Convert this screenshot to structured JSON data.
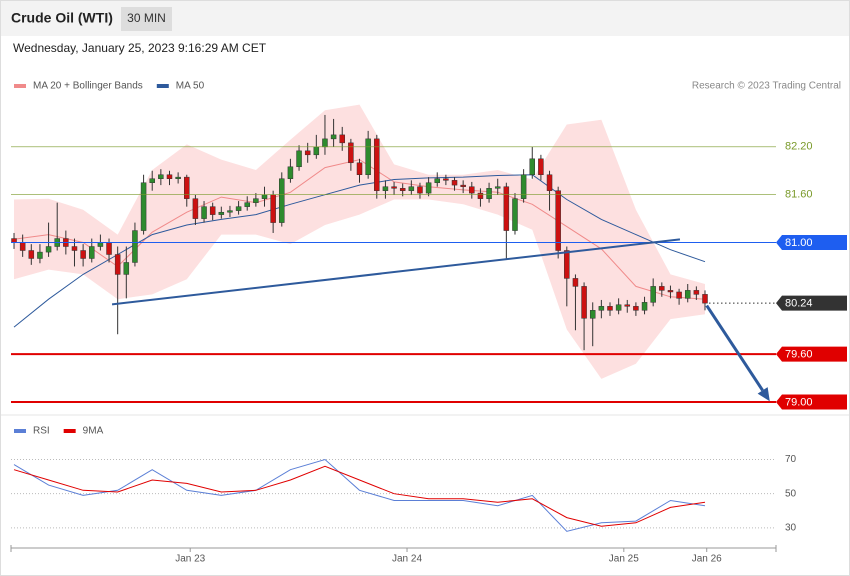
{
  "header": {
    "title": "Crude Oil (WTI)",
    "interval": "30 MIN",
    "timestamp": "Wednesday, January 25, 2023 9:16:29 AM CET",
    "credit": "Research © 2023 Trading Central"
  },
  "chart_data": [
    {
      "type": "candlestick",
      "xlim": [
        -0.35,
        88.22
      ],
      "ylim": [
        78.9,
        82.85
      ],
      "up_color": "#2e8b2e",
      "down_color": "#cc1111",
      "legend": "top-left",
      "candles": {
        "open": [
          81.05,
          81.0,
          80.9,
          80.8,
          80.88,
          80.95,
          81.05,
          80.95,
          80.9,
          80.8,
          80.95,
          81.0,
          80.85,
          80.6,
          80.75,
          81.15,
          81.75,
          81.8,
          81.85,
          81.8,
          81.82,
          81.55,
          81.3,
          81.45,
          81.35,
          81.38,
          81.4,
          81.45,
          81.5,
          81.55,
          81.6,
          81.25,
          81.8,
          81.95,
          82.15,
          82.1,
          82.2,
          82.3,
          82.35,
          82.25,
          82.0,
          81.85,
          82.3,
          81.65,
          81.7,
          81.68,
          81.65,
          81.7,
          81.62,
          81.75,
          81.8,
          81.78,
          81.72,
          81.7,
          81.62,
          81.55,
          81.68,
          81.7,
          81.15,
          81.55,
          81.85,
          82.05,
          81.85,
          81.65,
          80.9,
          80.55,
          80.45,
          80.05,
          80.15,
          80.2,
          80.15,
          80.22,
          80.2,
          80.15,
          80.25,
          80.45,
          80.4,
          80.38,
          80.3,
          80.4,
          80.35
        ],
        "high": [
          81.12,
          81.1,
          80.98,
          80.98,
          81.25,
          81.5,
          81.15,
          81.05,
          80.98,
          81.05,
          81.1,
          81.05,
          80.95,
          80.95,
          81.25,
          81.85,
          81.9,
          81.92,
          81.9,
          81.88,
          81.85,
          81.6,
          81.52,
          81.5,
          81.45,
          81.46,
          81.52,
          81.58,
          81.62,
          81.7,
          81.65,
          81.88,
          82.05,
          82.22,
          82.25,
          82.35,
          82.6,
          82.55,
          82.45,
          82.3,
          82.05,
          82.4,
          82.35,
          81.78,
          81.76,
          81.74,
          81.78,
          81.75,
          81.82,
          81.88,
          81.85,
          81.82,
          81.78,
          81.76,
          81.68,
          81.75,
          81.8,
          81.75,
          81.62,
          81.92,
          82.2,
          82.1,
          81.9,
          81.7,
          80.95,
          80.6,
          80.5,
          80.25,
          80.28,
          80.25,
          80.3,
          80.28,
          80.25,
          80.32,
          80.55,
          80.5,
          80.46,
          80.42,
          80.48,
          80.45,
          80.4
        ],
        "low": [
          80.92,
          80.82,
          80.72,
          80.74,
          80.82,
          80.9,
          80.85,
          80.7,
          80.7,
          80.75,
          80.9,
          80.75,
          79.85,
          80.3,
          80.7,
          81.1,
          81.65,
          81.72,
          81.72,
          81.74,
          81.45,
          81.22,
          81.25,
          81.28,
          81.3,
          81.32,
          81.35,
          81.4,
          81.45,
          81.45,
          81.12,
          81.2,
          81.75,
          81.9,
          82.0,
          82.05,
          82.1,
          82.2,
          82.15,
          81.9,
          81.75,
          81.8,
          81.55,
          81.55,
          81.6,
          81.58,
          81.6,
          81.55,
          81.58,
          81.7,
          81.72,
          81.65,
          81.62,
          81.55,
          81.45,
          81.5,
          81.6,
          80.8,
          81.1,
          81.5,
          81.8,
          81.78,
          81.4,
          80.8,
          80.2,
          79.9,
          79.65,
          79.7,
          80.05,
          80.08,
          80.1,
          80.12,
          80.08,
          80.1,
          80.2,
          80.32,
          80.3,
          80.22,
          80.25,
          80.28,
          80.15
        ],
        "close": [
          81.0,
          80.9,
          80.8,
          80.88,
          80.95,
          81.05,
          80.95,
          80.9,
          80.8,
          80.95,
          81.0,
          80.85,
          80.6,
          80.75,
          81.15,
          81.75,
          81.8,
          81.85,
          81.8,
          81.82,
          81.55,
          81.3,
          81.45,
          81.35,
          81.38,
          81.4,
          81.45,
          81.5,
          81.55,
          81.6,
          81.25,
          81.8,
          81.95,
          82.15,
          82.1,
          82.2,
          82.3,
          82.35,
          82.25,
          82.0,
          81.85,
          82.3,
          81.65,
          81.7,
          81.68,
          81.65,
          81.7,
          81.62,
          81.75,
          81.8,
          81.78,
          81.72,
          81.7,
          81.62,
          81.55,
          81.68,
          81.7,
          81.15,
          81.55,
          81.85,
          82.05,
          81.85,
          81.65,
          80.9,
          80.55,
          80.45,
          80.05,
          80.15,
          80.2,
          80.15,
          80.22,
          80.2,
          80.15,
          80.25,
          80.45,
          80.4,
          80.38,
          80.3,
          80.4,
          80.35,
          80.24
        ]
      },
      "band": {
        "fill": "#fde0e0",
        "x": [
          0,
          4,
          8,
          12,
          16,
          20,
          24,
          28,
          32,
          36,
          40,
          44,
          48,
          52,
          56,
          60,
          64,
          68,
          72,
          76,
          80
        ],
        "upper": [
          81.54,
          81.55,
          81.41,
          81.1,
          81.91,
          82.23,
          82.04,
          81.91,
          82.29,
          82.66,
          82.73,
          81.98,
          81.85,
          81.85,
          81.91,
          81.79,
          82.48,
          82.54,
          81.41,
          80.6,
          80.48
        ],
        "lower": [
          80.54,
          80.66,
          80.6,
          80.29,
          80.35,
          80.54,
          81.1,
          81.1,
          80.98,
          81.22,
          81.35,
          81.54,
          81.54,
          81.48,
          81.35,
          81.16,
          79.91,
          79.29,
          79.48,
          80.04,
          80.1
        ]
      },
      "series": [
        {
          "name": "MA 20 + Bollinger Bands",
          "color": "#f08a8a",
          "x": [
            0,
            4,
            8,
            12,
            16,
            20,
            24,
            28,
            32,
            36,
            40,
            44,
            48,
            52,
            56,
            60,
            64,
            68,
            72,
            76,
            80
          ],
          "values": [
            81.04,
            81.1,
            81.0,
            80.7,
            81.13,
            81.38,
            81.57,
            81.5,
            81.63,
            81.94,
            82.04,
            81.76,
            81.7,
            81.66,
            81.63,
            81.48,
            81.2,
            80.92,
            80.45,
            80.32,
            80.29
          ]
        },
        {
          "name": "MA 50",
          "color": "#2e5a9c",
          "x": [
            0,
            4,
            8,
            12,
            16,
            20,
            24,
            28,
            32,
            36,
            40,
            44,
            48,
            52,
            56,
            60,
            64,
            68,
            72,
            76,
            80
          ],
          "values": [
            79.94,
            80.29,
            80.6,
            80.85,
            81.1,
            81.22,
            81.29,
            81.35,
            81.48,
            81.6,
            81.72,
            81.79,
            81.81,
            81.82,
            81.84,
            81.85,
            81.54,
            81.29,
            81.1,
            80.91,
            80.76
          ]
        }
      ],
      "levels": [
        {
          "value": 82.2,
          "label": "82.20",
          "color": "#7a9a2a",
          "line": "solid",
          "width": 0.7,
          "box": false
        },
        {
          "value": 81.6,
          "label": "81.60",
          "color": "#7a9a2a",
          "line": "solid",
          "width": 0.7,
          "box": false
        },
        {
          "value": 81,
          "label": "81.00",
          "color": "#1e5ef0",
          "line": "solid",
          "width": 1,
          "box": true
        },
        {
          "value": 80.24,
          "label": "80.24",
          "color": "#333333",
          "line": "dotted",
          "width": 1,
          "box": true
        },
        {
          "value": 79.6,
          "label": "79.60",
          "color": "#e00000",
          "line": "solid",
          "width": 2,
          "box": true
        },
        {
          "value": 79,
          "label": "79.00",
          "color": "#e00000",
          "line": "solid",
          "width": 2,
          "box": true
        }
      ],
      "trendline": {
        "color": "#2e5a9c",
        "x": [
          11.35,
          77.1
        ],
        "y": [
          80.225,
          81.04
        ]
      },
      "arrow": {
        "color": "#2e5a9c",
        "x": [
          80.2,
          87.5
        ],
        "y": [
          80.21,
          79.01
        ]
      }
    },
    {
      "type": "line",
      "xlim": [
        -0.35,
        88.22
      ],
      "ylim": [
        20,
        96
      ],
      "legend": "top-left",
      "grid": "dotted",
      "yticks": [
        70,
        50,
        30
      ],
      "xticks": [
        {
          "value": 20.4,
          "label": "Jan 23"
        },
        {
          "value": 45.5,
          "label": "Jan 24"
        },
        {
          "value": 70.6,
          "label": "Jan 25"
        },
        {
          "value": 80.2,
          "label": "Jan 26"
        }
      ],
      "series": [
        {
          "name": "RSI",
          "color": "#5b7fd6",
          "x": [
            0,
            4,
            8,
            12,
            16,
            20,
            24,
            28,
            32,
            36,
            40,
            44,
            48,
            52,
            56,
            60,
            64,
            68,
            72,
            76,
            80
          ],
          "values": [
            67,
            55,
            49,
            52,
            64,
            52,
            49,
            52,
            64,
            70,
            52,
            46,
            46,
            46,
            43,
            49,
            28,
            33,
            34,
            46,
            43
          ]
        },
        {
          "name": "9MA",
          "color": "#e00000",
          "x": [
            0,
            4,
            8,
            12,
            16,
            20,
            24,
            28,
            32,
            36,
            40,
            44,
            48,
            52,
            56,
            60,
            64,
            68,
            72,
            76,
            80
          ],
          "values": [
            64,
            58,
            52,
            51,
            58,
            56,
            51,
            52,
            58,
            66,
            58,
            50,
            47,
            47,
            45,
            47,
            36,
            31,
            33,
            42,
            45
          ]
        }
      ]
    }
  ]
}
